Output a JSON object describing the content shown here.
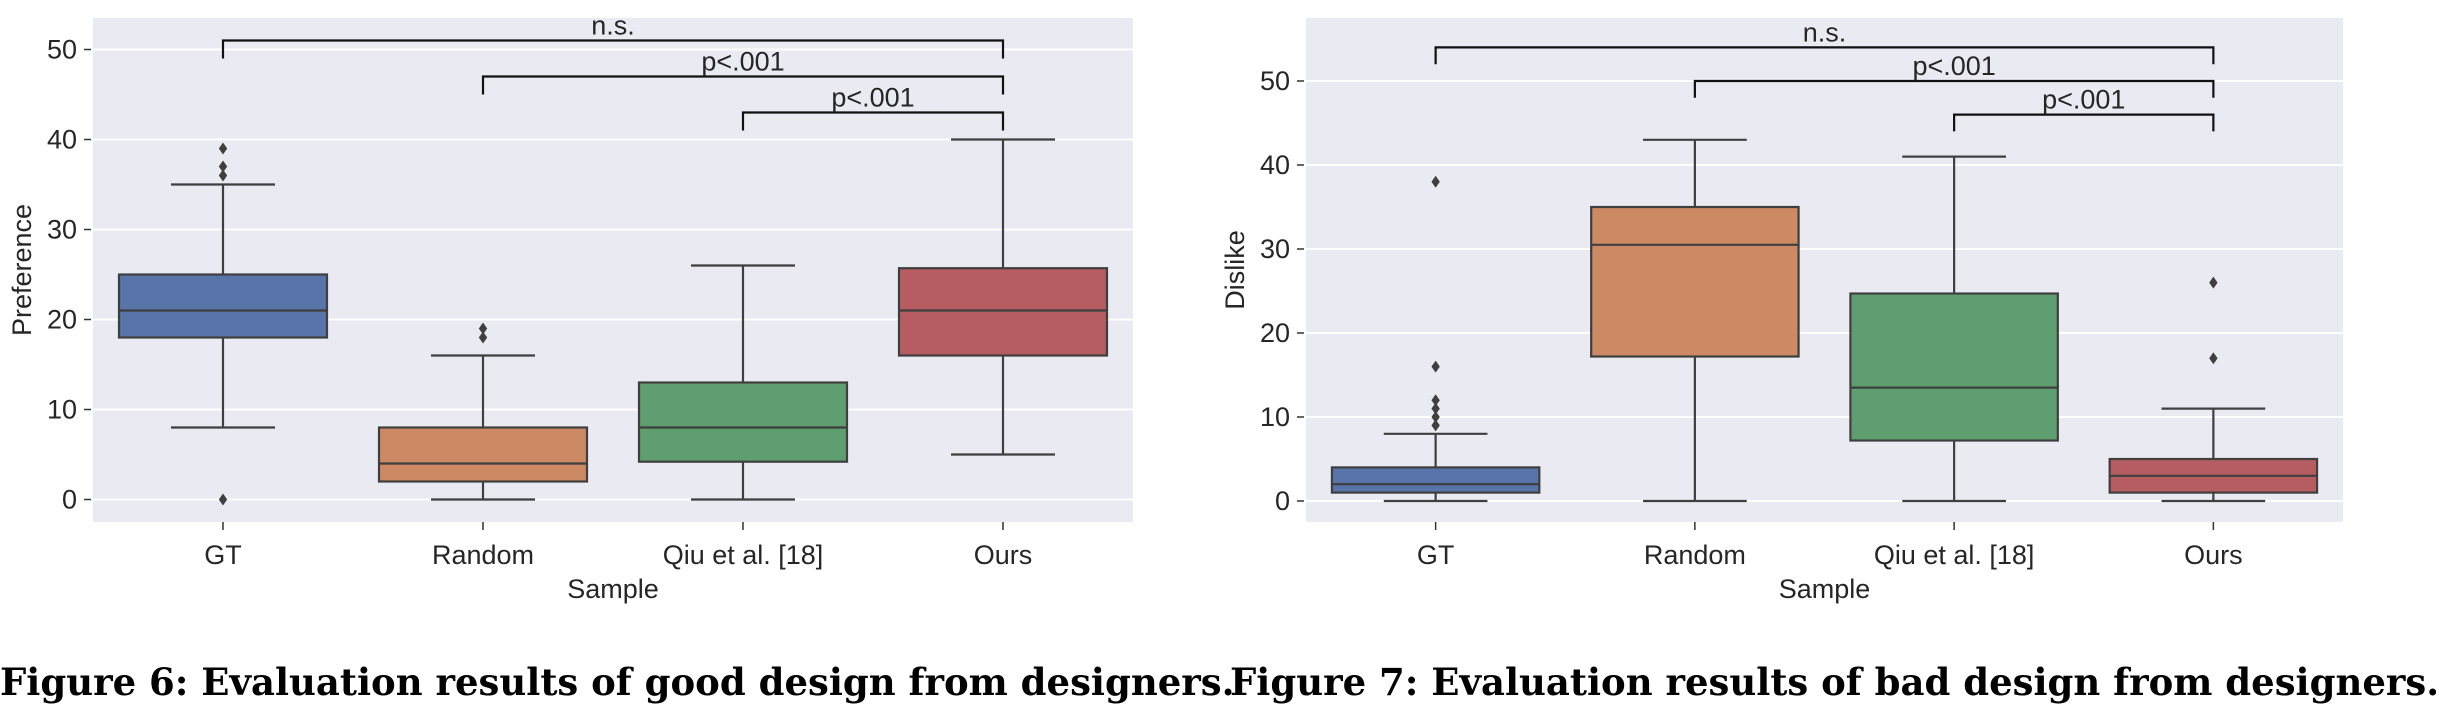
{
  "figures": [
    {
      "caption": "Figure 6: Evaluation results of good design from designers.",
      "chart_data": {
        "type": "box",
        "title": "",
        "xlabel": "Sample",
        "ylabel": "Preference",
        "categories": [
          "GT",
          "Random",
          "Qiu et al. [18]",
          "Ours"
        ],
        "ylim": [
          -2.5,
          53.5
        ],
        "yticks": [
          0,
          10,
          20,
          30,
          40,
          50
        ],
        "grid": true,
        "colors": [
          "#5874a8",
          "#cc8963",
          "#5f9e6e",
          "#b55d60"
        ],
        "boxes": [
          {
            "category": "GT",
            "whisker_low": 8,
            "q1": 18,
            "median": 21,
            "q3": 25,
            "whisker_high": 35,
            "outliers": [
              0,
              36,
              37,
              39
            ]
          },
          {
            "category": "Random",
            "whisker_low": 0,
            "q1": 2,
            "median": 4,
            "q3": 8,
            "whisker_high": 16,
            "outliers": [
              18,
              19
            ]
          },
          {
            "category": "Qiu et al. [18]",
            "whisker_low": 0,
            "q1": 4.2,
            "median": 8,
            "q3": 13,
            "whisker_high": 26,
            "outliers": []
          },
          {
            "category": "Ours",
            "whisker_low": 5,
            "q1": 16,
            "median": 21,
            "q3": 25.7,
            "whisker_high": 40,
            "outliers": []
          }
        ],
        "significance": [
          {
            "from": 0,
            "to": 3,
            "label": "n.s.",
            "y": 51,
            "tick": 2
          },
          {
            "from": 1,
            "to": 3,
            "label": "p<.001",
            "y": 47,
            "tick": 2
          },
          {
            "from": 2,
            "to": 3,
            "label": "p<.001",
            "y": 43,
            "tick": 2
          }
        ]
      }
    },
    {
      "caption": "Figure 7: Evaluation results of bad design from designers.",
      "chart_data": {
        "type": "box",
        "title": "",
        "xlabel": "Sample",
        "ylabel": "Dislike",
        "categories": [
          "GT",
          "Random",
          "Qiu et al. [18]",
          "Ours"
        ],
        "ylim": [
          -2.5,
          57.5
        ],
        "yticks": [
          0,
          10,
          20,
          30,
          40,
          50
        ],
        "grid": true,
        "colors": [
          "#5874a8",
          "#cc8963",
          "#5f9e6e",
          "#b55d60"
        ],
        "boxes": [
          {
            "category": "GT",
            "whisker_low": 0,
            "q1": 1,
            "median": 2,
            "q3": 4,
            "whisker_high": 8,
            "outliers": [
              9,
              10,
              11,
              12,
              16,
              38
            ]
          },
          {
            "category": "Random",
            "whisker_low": 0,
            "q1": 17.2,
            "median": 30.5,
            "q3": 35,
            "whisker_high": 43,
            "outliers": []
          },
          {
            "category": "Qiu et al. [18]",
            "whisker_low": 0,
            "q1": 7.2,
            "median": 13.5,
            "q3": 24.7,
            "whisker_high": 41,
            "outliers": []
          },
          {
            "category": "Ours",
            "whisker_low": 0,
            "q1": 1,
            "median": 3,
            "q3": 5,
            "whisker_high": 11,
            "outliers": [
              17,
              26
            ]
          }
        ],
        "significance": [
          {
            "from": 0,
            "to": 3,
            "label": "n.s.",
            "y": 54,
            "tick": 2
          },
          {
            "from": 1,
            "to": 3,
            "label": "p<.001",
            "y": 50,
            "tick": 2
          },
          {
            "from": 2,
            "to": 3,
            "label": "p<.001",
            "y": 46,
            "tick": 2
          }
        ]
      }
    }
  ]
}
